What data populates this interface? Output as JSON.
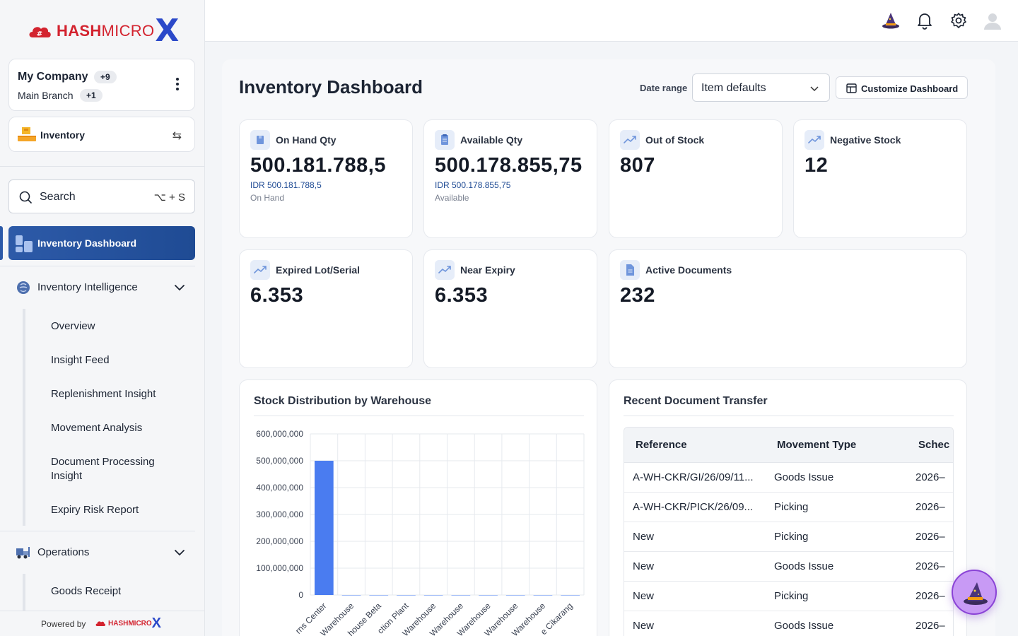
{
  "brand": {
    "name_bold": "HASH",
    "name_light": "MICRO",
    "x": "X"
  },
  "company": {
    "name": "My Company",
    "name_count": "+9",
    "branch": "Main Branch",
    "branch_count": "+1"
  },
  "module": {
    "label": "Inventory"
  },
  "search": {
    "label": "Search",
    "shortcut": "⌥ + S"
  },
  "nav": {
    "active": "Inventory Dashboard",
    "groups": [
      {
        "label": "Inventory Intelligence",
        "items": [
          "Overview",
          "Insight Feed",
          "Replenishment Insight",
          "Movement Analysis",
          "Document Processing Insight",
          "Expiry Risk Report"
        ]
      },
      {
        "label": "Operations",
        "items": [
          "Goods Receipt"
        ]
      }
    ]
  },
  "footer": {
    "powered_by": "Powered by",
    "brand": "HASHMICRO",
    "x": "X"
  },
  "page": {
    "title": "Inventory Dashboard",
    "date_range_label": "Date range",
    "date_range_value": "Item defaults",
    "customize_label": "Customize Dashboard"
  },
  "kpis": [
    {
      "label": "On Hand Qty",
      "value": "500.181.788,5",
      "sub": "IDR 500.181.788,5",
      "sub2": "On Hand",
      "icon": "box-icon"
    },
    {
      "label": "Available Qty",
      "value": "500.178.855,75",
      "sub": "IDR 500.178.855,75",
      "sub2": "Available",
      "icon": "clipboard-icon"
    },
    {
      "label": "Out of Stock",
      "value": "807",
      "icon": "trend-icon"
    },
    {
      "label": "Negative Stock",
      "value": "12",
      "icon": "trend-icon"
    },
    {
      "label": "Expired Lot/Serial",
      "value": "6.353",
      "icon": "trend-icon"
    },
    {
      "label": "Near Expiry",
      "value": "6.353",
      "icon": "trend-icon"
    },
    {
      "label": "Active Documents",
      "value": "232",
      "icon": "document-icon"
    }
  ],
  "stock_chart_title": "Stock Distribution by Warehouse",
  "chart_data": {
    "type": "bar",
    "title": "Stock Distribution by Warehouse",
    "categories": [
      "rns Center",
      "Warehouse",
      "house Beta",
      "ction Plant",
      "Warehouse",
      "Warehouse",
      "Warehouse",
      "Warehouse",
      "Warehouse",
      "e Cikarang"
    ],
    "values": [
      500000000,
      0,
      0,
      0,
      0,
      0,
      0,
      0,
      0,
      0
    ],
    "yticks": [
      "0",
      "100,000,000",
      "200,000,000",
      "300,000,000",
      "400,000,000",
      "500,000,000",
      "600,000,000"
    ],
    "ylim": [
      0,
      600000000
    ],
    "bar_color": "#4a7cf0",
    "grid": true
  },
  "transfers": {
    "title": "Recent Document Transfer",
    "columns": [
      "Reference",
      "Movement Type",
      "Schec"
    ],
    "rows": [
      [
        "A-WH-CKR/GI/26/09/11...",
        "Goods Issue",
        "2026–"
      ],
      [
        "A-WH-CKR/PICK/26/09...",
        "Picking",
        "2026–"
      ],
      [
        "New",
        "Picking",
        "2026–"
      ],
      [
        "New",
        "Goods Issue",
        "2026–"
      ],
      [
        "New",
        "Picking",
        "2026–"
      ],
      [
        "New",
        "Goods Issue",
        "2026–"
      ]
    ]
  },
  "colors": {
    "accent": "#2d5aa8",
    "brand_red": "#d3232f",
    "brand_blue": "#2b49c9",
    "bar": "#4a7cf0"
  }
}
